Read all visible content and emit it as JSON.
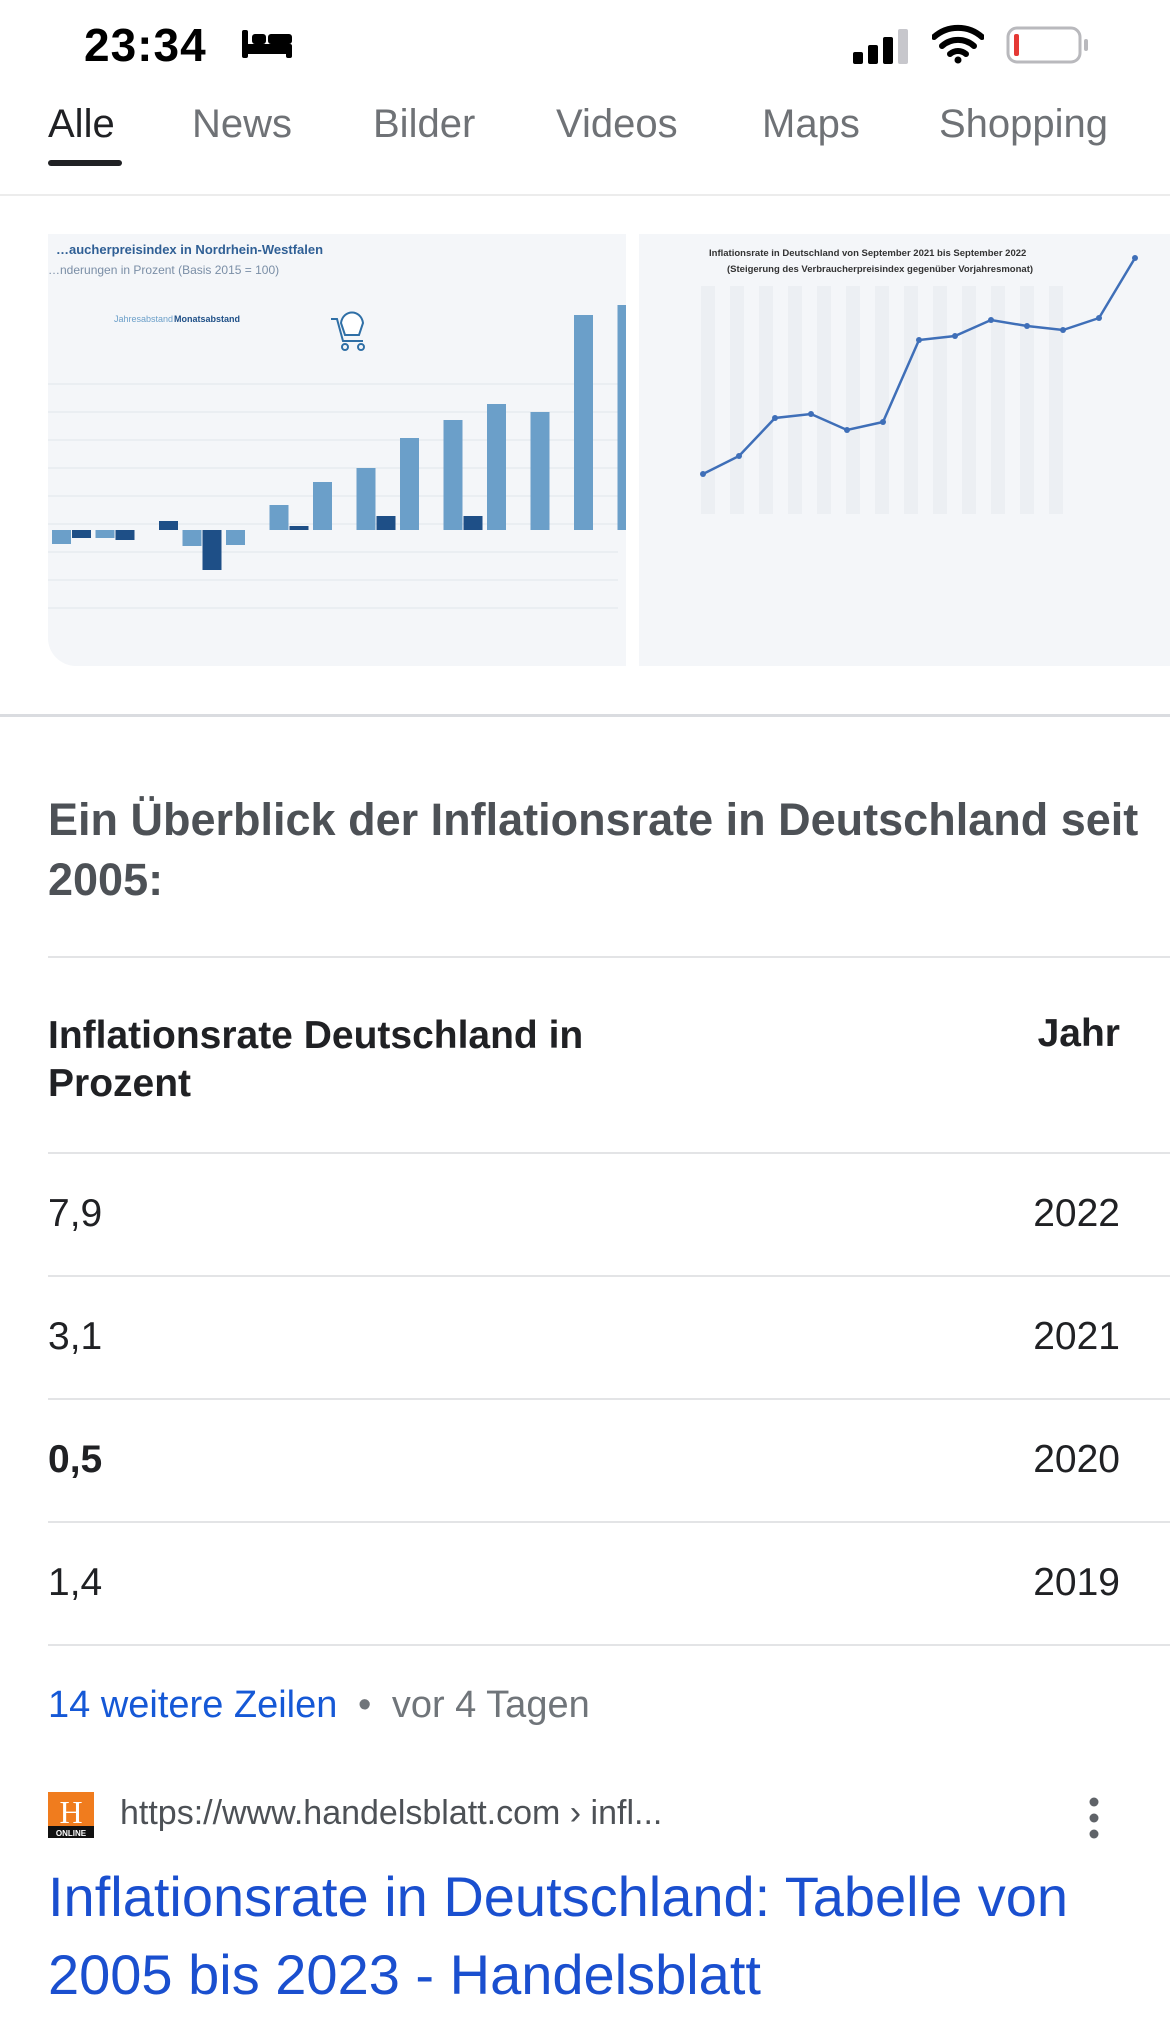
{
  "status_bar": {
    "time": "23:34",
    "icons": [
      "bed-icon",
      "cellular-signal-icon",
      "wifi-icon",
      "battery-low-icon"
    ],
    "battery_color": "#e53935"
  },
  "tabs": [
    {
      "label": "Alle",
      "active": true
    },
    {
      "label": "News",
      "active": false
    },
    {
      "label": "Bilder",
      "active": false
    },
    {
      "label": "Videos",
      "active": false
    },
    {
      "label": "Maps",
      "active": false
    },
    {
      "label": "Shopping",
      "active": false
    }
  ],
  "images": {
    "left": {
      "title": "…aucherpreisindex in Nordrhein-Westfalen",
      "subtitle": "…nderungen in Prozent (Basis 2015 = 100)",
      "legend": [
        "Jahresabstand",
        "Monatsabstand"
      ]
    },
    "right": {
      "title": "Inflationsrate in Deutschland von September 2021 bis September 2022",
      "subtitle": "(Steigerung des Verbraucherpreisindex gegenüber Vorjahresmonat)"
    }
  },
  "summary": "Ein Überblick der Inflationsrate in Deutschland seit 2005:",
  "table": {
    "headers": [
      "Inflationsrate Deutschland in Prozent",
      "Jahr"
    ],
    "rows": [
      {
        "rate": "7,9",
        "year": "2022"
      },
      {
        "rate": "3,1",
        "year": "2021"
      },
      {
        "rate": "0,5",
        "year": "2020"
      },
      {
        "rate": "1,4",
        "year": "2019"
      }
    ]
  },
  "more_rows": {
    "link": "14 weitere Zeilen",
    "separator": "•",
    "time": "vor 4 Tagen"
  },
  "result": {
    "favicon_letter": "H",
    "favicon_caption": "ONLINE",
    "url": "https://www.handelsblatt.com › infl...",
    "title": "Inflationsrate in Deutschland: Tabelle von 2005 bis 2023 - Handelsblatt"
  },
  "colors": {
    "link_blue": "#1a4fcf",
    "bar_light": "#6b9fc9",
    "bar_dark": "#1e4f87",
    "line_blue": "#3f6fb8"
  }
}
